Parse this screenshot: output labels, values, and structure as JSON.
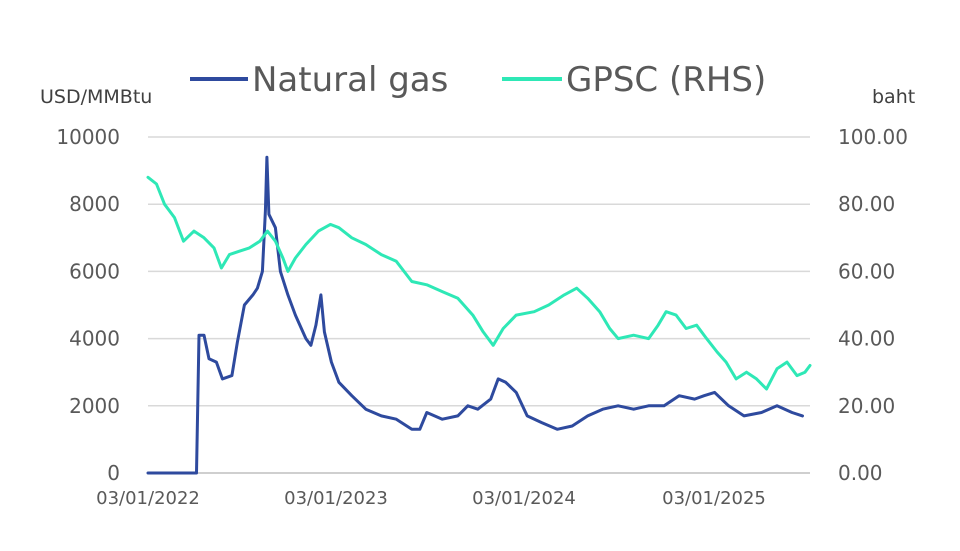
{
  "chart_data": {
    "type": "line",
    "y_left_unit": "USD/MMBtu",
    "y_right_unit": "baht",
    "y_left_ticks": [
      "10000",
      "8000",
      "6000",
      "4000",
      "2000",
      "0"
    ],
    "y_right_ticks": [
      "100.00",
      "80.00",
      "60.00",
      "40.00",
      "20.00",
      "0.00"
    ],
    "ylim_left": [
      0,
      10000
    ],
    "ylim_right": [
      0,
      100
    ],
    "x_tick_labels": [
      "03/01/2022",
      "03/01/2023",
      "03/01/2024",
      "03/01/2025"
    ],
    "grid": true,
    "legend_position": "top",
    "series": [
      {
        "name": "Natural gas",
        "axis": "left",
        "color": "#2e4a9e",
        "points": [
          [
            "2022-01-03",
            0
          ],
          [
            "2022-03-01",
            0
          ],
          [
            "2022-04-10",
            0
          ],
          [
            "2022-04-15",
            4100
          ],
          [
            "2022-04-25",
            4100
          ],
          [
            "2022-05-05",
            3400
          ],
          [
            "2022-05-20",
            3300
          ],
          [
            "2022-06-01",
            2800
          ],
          [
            "2022-06-20",
            2900
          ],
          [
            "2022-07-01",
            3900
          ],
          [
            "2022-07-15",
            5000
          ],
          [
            "2022-08-01",
            5300
          ],
          [
            "2022-08-10",
            5500
          ],
          [
            "2022-08-20",
            6000
          ],
          [
            "2022-08-26",
            7800
          ],
          [
            "2022-08-29",
            9400
          ],
          [
            "2022-09-02",
            7700
          ],
          [
            "2022-09-15",
            7300
          ],
          [
            "2022-09-25",
            6000
          ],
          [
            "2022-10-10",
            5300
          ],
          [
            "2022-10-25",
            4700
          ],
          [
            "2022-11-15",
            4000
          ],
          [
            "2022-11-25",
            3800
          ],
          [
            "2022-12-05",
            4400
          ],
          [
            "2022-12-15",
            5300
          ],
          [
            "2022-12-22",
            4200
          ],
          [
            "2023-01-05",
            3300
          ],
          [
            "2023-01-20",
            2700
          ],
          [
            "2023-02-15",
            2300
          ],
          [
            "2023-03-15",
            1900
          ],
          [
            "2023-04-15",
            1700
          ],
          [
            "2023-05-15",
            1600
          ],
          [
            "2023-06-15",
            1300
          ],
          [
            "2023-07-01",
            1300
          ],
          [
            "2023-07-15",
            1800
          ],
          [
            "2023-08-15",
            1600
          ],
          [
            "2023-09-15",
            1700
          ],
          [
            "2023-10-05",
            2000
          ],
          [
            "2023-10-25",
            1900
          ],
          [
            "2023-11-20",
            2200
          ],
          [
            "2023-12-05",
            2800
          ],
          [
            "2023-12-20",
            2700
          ],
          [
            "2024-01-10",
            2400
          ],
          [
            "2024-02-01",
            1700
          ],
          [
            "2024-03-01",
            1500
          ],
          [
            "2024-04-01",
            1300
          ],
          [
            "2024-05-01",
            1400
          ],
          [
            "2024-06-01",
            1700
          ],
          [
            "2024-07-01",
            1900
          ],
          [
            "2024-08-01",
            2000
          ],
          [
            "2024-09-01",
            1900
          ],
          [
            "2024-10-01",
            2000
          ],
          [
            "2024-11-01",
            2000
          ],
          [
            "2024-12-01",
            2300
          ],
          [
            "2025-01-01",
            2200
          ],
          [
            "2025-01-20",
            2300
          ],
          [
            "2025-02-10",
            2400
          ],
          [
            "2025-03-10",
            2000
          ],
          [
            "2025-04-10",
            1700
          ],
          [
            "2025-05-15",
            1800
          ],
          [
            "2025-06-15",
            2000
          ],
          [
            "2025-07-15",
            1800
          ],
          [
            "2025-08-05",
            1700
          ]
        ]
      },
      {
        "name": "GPSC (RHS)",
        "axis": "right",
        "color": "#2ee8b6",
        "points": [
          [
            "2022-01-03",
            88
          ],
          [
            "2022-01-20",
            86
          ],
          [
            "2022-02-05",
            80
          ],
          [
            "2022-02-25",
            76
          ],
          [
            "2022-03-15",
            69
          ],
          [
            "2022-04-05",
            72
          ],
          [
            "2022-04-25",
            70
          ],
          [
            "2022-05-15",
            67
          ],
          [
            "2022-05-30",
            61
          ],
          [
            "2022-06-15",
            65
          ],
          [
            "2022-07-05",
            66
          ],
          [
            "2022-07-25",
            67
          ],
          [
            "2022-08-15",
            69
          ],
          [
            "2022-08-30",
            72
          ],
          [
            "2022-09-15",
            69
          ],
          [
            "2022-09-30",
            64
          ],
          [
            "2022-10-10",
            60
          ],
          [
            "2022-10-25",
            64
          ],
          [
            "2022-11-15",
            68
          ],
          [
            "2022-12-10",
            72
          ],
          [
            "2023-01-03",
            74
          ],
          [
            "2023-01-20",
            73
          ],
          [
            "2023-02-15",
            70
          ],
          [
            "2023-03-15",
            68
          ],
          [
            "2023-04-15",
            65
          ],
          [
            "2023-05-15",
            63
          ],
          [
            "2023-06-15",
            57
          ],
          [
            "2023-07-15",
            56
          ],
          [
            "2023-08-15",
            54
          ],
          [
            "2023-09-15",
            52
          ],
          [
            "2023-10-15",
            47
          ],
          [
            "2023-11-05",
            42
          ],
          [
            "2023-11-25",
            38
          ],
          [
            "2023-12-15",
            43
          ],
          [
            "2024-01-10",
            47
          ],
          [
            "2024-02-15",
            48
          ],
          [
            "2024-03-15",
            50
          ],
          [
            "2024-04-15",
            53
          ],
          [
            "2024-05-10",
            55
          ],
          [
            "2024-06-01",
            52
          ],
          [
            "2024-06-25",
            48
          ],
          [
            "2024-07-15",
            43
          ],
          [
            "2024-08-01",
            40
          ],
          [
            "2024-09-01",
            41
          ],
          [
            "2024-10-01",
            40
          ],
          [
            "2024-10-20",
            44
          ],
          [
            "2024-11-05",
            48
          ],
          [
            "2024-11-25",
            47
          ],
          [
            "2024-12-15",
            43
          ],
          [
            "2025-01-05",
            44
          ],
          [
            "2025-01-25",
            40
          ],
          [
            "2025-02-15",
            36
          ],
          [
            "2025-03-05",
            33
          ],
          [
            "2025-03-25",
            28
          ],
          [
            "2025-04-15",
            30
          ],
          [
            "2025-05-05",
            28
          ],
          [
            "2025-05-25",
            25
          ],
          [
            "2025-06-15",
            31
          ],
          [
            "2025-07-05",
            33
          ],
          [
            "2025-07-25",
            29
          ],
          [
            "2025-08-10",
            30
          ],
          [
            "2025-08-20",
            32
          ]
        ]
      }
    ]
  }
}
